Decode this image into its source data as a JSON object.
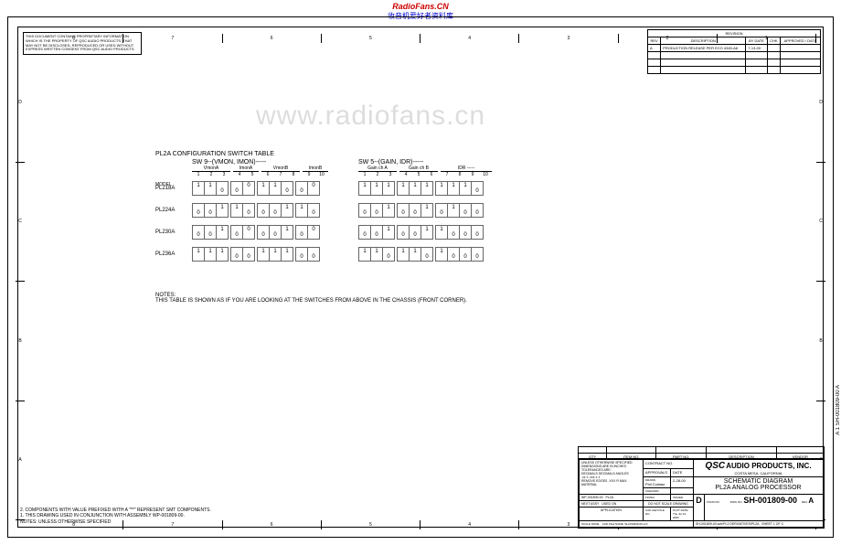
{
  "header": {
    "line1": "RadioFans.CN",
    "line2": "收音机爱好者资料库"
  },
  "watermark": "www.radiofans.cn",
  "proprietary": "THIS DOCUMENT CONTAINS PROPRIETARY INFORMATION WHICH IS THE PROPERTY OF QSC AUDIO PRODUCTS, THAT MAY NOT BE DISCLOSED, REPRODUCED OR USED WITHOUT EXPRESS WRITTEN CONSENT FROM QSC AUDIO PRODUCTS.",
  "ruler_h": [
    "8",
    "7",
    "6",
    "5",
    "4",
    "3",
    "2",
    "1"
  ],
  "ruler_v": [
    "D",
    "C",
    "B",
    "A"
  ],
  "revision": {
    "title": "REVISION",
    "cols": [
      "REV",
      "DESCRIPTION",
      "BY DATE",
      "CHK",
      "APPROVED / DATE"
    ],
    "rows": [
      [
        "A",
        "PRODUCTION RELEASE PER ECO 4345-A6",
        "7-13-00",
        "",
        ""
      ]
    ]
  },
  "config": {
    "title": "PL2A CONFIGURATION SWITCH TABLE",
    "sw9": {
      "label": "SW 9--(VMON, IMON)-----",
      "groups": [
        {
          "name": "VmonA",
          "cols": [
            "1",
            "2",
            "3"
          ]
        },
        {
          "name": "ImonA",
          "cols": [
            "4",
            "5"
          ]
        },
        {
          "name": "VmonB",
          "cols": [
            "6",
            "7",
            "8"
          ]
        },
        {
          "name": "ImonB",
          "cols": [
            "9",
            "10"
          ]
        }
      ]
    },
    "sw5": {
      "label": "SW 5--(GAIN, IDR)-----",
      "groups": [
        {
          "name": "Gain ch A",
          "cols": [
            "1",
            "2",
            "3"
          ]
        },
        {
          "name": "Gain ch B",
          "cols": [
            "4",
            "5",
            "6"
          ]
        },
        {
          "name": "IDR -----",
          "cols": [
            "7",
            "8",
            "9",
            "10"
          ]
        }
      ]
    },
    "model_label": "MODEL",
    "models": [
      "PL218A",
      "PL224A",
      "PL230A",
      "PL236A"
    ],
    "sw9_data": [
      [
        [
          "1",
          "1",
          ""
        ],
        [
          "",
          "0"
        ],
        [
          "1",
          "1",
          ""
        ],
        [
          "",
          "0"
        ],
        [
          "",
          "",
          "1"
        ],
        [
          "",
          "0"
        ],
        [
          "",
          "",
          "1"
        ],
        [
          "",
          "0"
        ]
      ],
      [
        [
          "",
          "",
          "1"
        ],
        [
          "1",
          ""
        ],
        [
          "",
          "",
          "1"
        ],
        [
          "1",
          ""
        ],
        [
          "",
          "",
          "1"
        ],
        [
          "1",
          ""
        ],
        [
          "",
          "",
          "1"
        ],
        [
          "1",
          ""
        ]
      ],
      [
        [
          "",
          "",
          "1"
        ],
        [
          "",
          "0"
        ],
        [
          "",
          "",
          "1"
        ],
        [
          "",
          "0"
        ],
        [
          "",
          "",
          "1"
        ],
        [
          "",
          "0"
        ],
        [
          "",
          "",
          "1"
        ],
        [
          "",
          "0"
        ]
      ],
      [
        [
          "1",
          "1",
          "1"
        ],
        [
          "",
          ""
        ],
        [
          "1",
          "1",
          "1"
        ],
        [
          "",
          ""
        ],
        [
          "",
          "",
          "1"
        ],
        [
          "",
          "0"
        ],
        [
          "",
          "",
          "1"
        ],
        [
          "",
          "0"
        ]
      ]
    ],
    "sw9_data_bot": [
      [
        [
          "",
          "",
          "0"
        ],
        [
          "0",
          ""
        ],
        [
          "",
          "",
          "0"
        ],
        [
          "0",
          ""
        ],
        [
          "0",
          "0",
          ""
        ],
        [
          "0",
          ""
        ],
        [
          "0",
          "0",
          ""
        ],
        [
          "0",
          ""
        ]
      ],
      [
        [
          "0",
          "0",
          ""
        ],
        [
          "",
          "0"
        ],
        [
          "0",
          "0",
          ""
        ],
        [
          "",
          "0"
        ],
        [
          "0",
          "0",
          ""
        ],
        [
          "",
          "0"
        ],
        [
          "0",
          "0",
          ""
        ],
        [
          "",
          "0"
        ]
      ],
      [
        [
          "0",
          "0",
          ""
        ],
        [
          "0",
          ""
        ],
        [
          "0",
          "0",
          ""
        ],
        [
          "0",
          ""
        ],
        [
          "0",
          "0",
          ""
        ],
        [
          "0",
          ""
        ],
        [
          "0",
          "0",
          ""
        ],
        [
          "0",
          ""
        ]
      ],
      [
        [
          "",
          "",
          ""
        ],
        [
          "0",
          "0"
        ],
        [
          "",
          "",
          ""
        ],
        [
          "0",
          "0"
        ],
        [
          "0",
          "0",
          ""
        ],
        [
          "0",
          ""
        ],
        [
          "0",
          "0",
          ""
        ],
        [
          "0",
          ""
        ]
      ]
    ],
    "sw5_data": [
      [
        [
          "1",
          "1",
          "1"
        ],
        [
          "1",
          "1",
          "1"
        ],
        [
          "1",
          "1",
          "1",
          ""
        ]
      ],
      [
        [
          "",
          "",
          "1"
        ],
        [
          "",
          "",
          "1"
        ],
        [
          "",
          "1",
          "",
          ""
        ]
      ],
      [
        [
          "",
          "",
          "1"
        ],
        [
          "",
          "",
          "1"
        ],
        [
          "1",
          "",
          "",
          ""
        ]
      ],
      [
        [
          "1",
          "1",
          ""
        ],
        [
          "1",
          "1",
          ""
        ],
        [
          "1",
          "",
          "",
          ""
        ]
      ]
    ],
    "sw5_data_bot": [
      [
        [
          "",
          "",
          ""
        ],
        [
          "",
          "",
          ""
        ],
        [
          "",
          "",
          "",
          "0"
        ]
      ],
      [
        [
          "0",
          "0",
          ""
        ],
        [
          "0",
          "0",
          ""
        ],
        [
          "0",
          "",
          "0",
          "0"
        ]
      ],
      [
        [
          "0",
          "0",
          ""
        ],
        [
          "0",
          "0",
          ""
        ],
        [
          "",
          "0",
          "0",
          "0"
        ]
      ],
      [
        [
          "",
          "",
          "0"
        ],
        [
          "",
          "",
          "0"
        ],
        [
          "",
          "0",
          "0",
          "0"
        ]
      ]
    ],
    "notes_label": "NOTES:",
    "notes": "THIS TABLE IS SHOWN AS IF YOU ARE LOOKING AT THE SWITCHES FROM ABOVE IN THE CHASSIS (FRONT CORNER)."
  },
  "bottom_notes": [
    "2. COMPONENTS WITH VALUE PREFIXED WITH A \"**\" REPRESENT SMT COMPONENTS.",
    "1. THIS DRAWING USED IN CONJUNCTION WITH ASSEMBLY WP-001809-00.",
    "NOTES: UNLESS OTHERWISE SPECIFIED"
  ],
  "partslist": {
    "title": "PARTS LIST",
    "cols": [
      "QTY",
      "ITEM NO.",
      "PART NO.",
      "DESCRIPTION",
      "VENDOR"
    ]
  },
  "titleblock": {
    "tolerances": "UNLESS OTHERWISE SPECIFIED DIMENSIONS ARE IN INCHES. TOLERANCES ARE:",
    "tol_lines": [
      "DECIMALS   DECIMALS   ANGLES",
      ".xx ±     .xxx ±     ±",
      "REMOVE EDGES .XXX R MAX.",
      "MATERIAL"
    ],
    "contract": "CONTRACT NO.",
    "approvals": "APPROVALS",
    "date": "DATE",
    "drawn": "DRAWN",
    "drawn_by": "Phil Culням",
    "drawn_date": "2-28-00",
    "checked": "CHECKED",
    "issued": "ISSUED",
    "company": "AUDIO PRODUCTS, INC.",
    "company_logo": "QSC",
    "location": "COSTA MESA, CALIFORNIA",
    "title1": "SCHEMATIC DIAGRAM",
    "title2": "PL2A ANALOG PROCESSOR",
    "size": "D",
    "fscm": "FSCM NO.",
    "dwg_label": "DWG NO.",
    "dwg": "SH-001809-00",
    "rev": "A",
    "rev_label": "REV",
    "scale": "SCALE",
    "scale_val": "NONE",
    "cad": "CAD FILE NAME: SH-001809-00.sch",
    "sheet": "SHEET 1 OF 3",
    "plot": "PLOT DATE:",
    "plot_date": "Thu Jul 13, 2000",
    "app_row": [
      [
        "WP-001809-00",
        "PL2A"
      ],
      [
        "NEXT ASSY",
        "USED ON"
      ],
      [
        "APPLICATION",
        ""
      ]
    ],
    "finish": "FINISH",
    "donotscale": "DO NOT SCALE DRAWING",
    "cadfile": "CAD GEN FILE NO.",
    "filepath": "SH-001809-00.sch\\PL2 DERIVATIVES\\PL2A"
  },
  "side": "A  1  SH-001809-00  A"
}
